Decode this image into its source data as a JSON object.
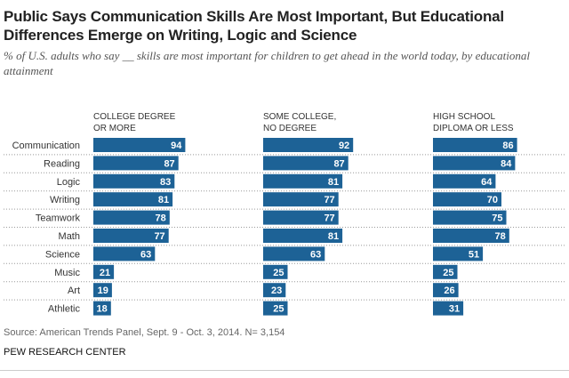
{
  "chart_data": {
    "type": "bar",
    "title": "Public Says Communication Skills Are Most Important, But Educational Differences Emerge on Writing, Logic and Science",
    "subtitle": "% of U.S. adults who say __ skills are most important for children to get ahead in the world today, by educational attainment",
    "categories": [
      "Communication",
      "Reading",
      "Logic",
      "Writing",
      "Teamwork",
      "Math",
      "Science",
      "Music",
      "Art",
      "Athletic"
    ],
    "series": [
      {
        "name": "COLLEGE DEGREE OR MORE",
        "name_lines": [
          "COLLEGE DEGREE",
          "OR MORE"
        ],
        "values": [
          94,
          87,
          83,
          81,
          78,
          77,
          63,
          21,
          19,
          18
        ]
      },
      {
        "name": "SOME COLLEGE, NO DEGREE",
        "name_lines": [
          "SOME COLLEGE,",
          "NO DEGREE"
        ],
        "values": [
          92,
          87,
          81,
          77,
          77,
          81,
          63,
          25,
          23,
          25
        ]
      },
      {
        "name": "HIGH SCHOOL DIPLOMA OR LESS",
        "name_lines": [
          "HIGH SCHOOL",
          "DIPLOMA OR LESS"
        ],
        "values": [
          86,
          84,
          64,
          70,
          75,
          78,
          51,
          25,
          26,
          31
        ]
      }
    ],
    "xlim": [
      0,
      100
    ],
    "grid": false,
    "bar_color": "#1d6296",
    "source": "Source: American Trends Panel, Sept. 9 - Oct. 3, 2014. N= 3,154",
    "organization": "PEW RESEARCH CENTER"
  }
}
